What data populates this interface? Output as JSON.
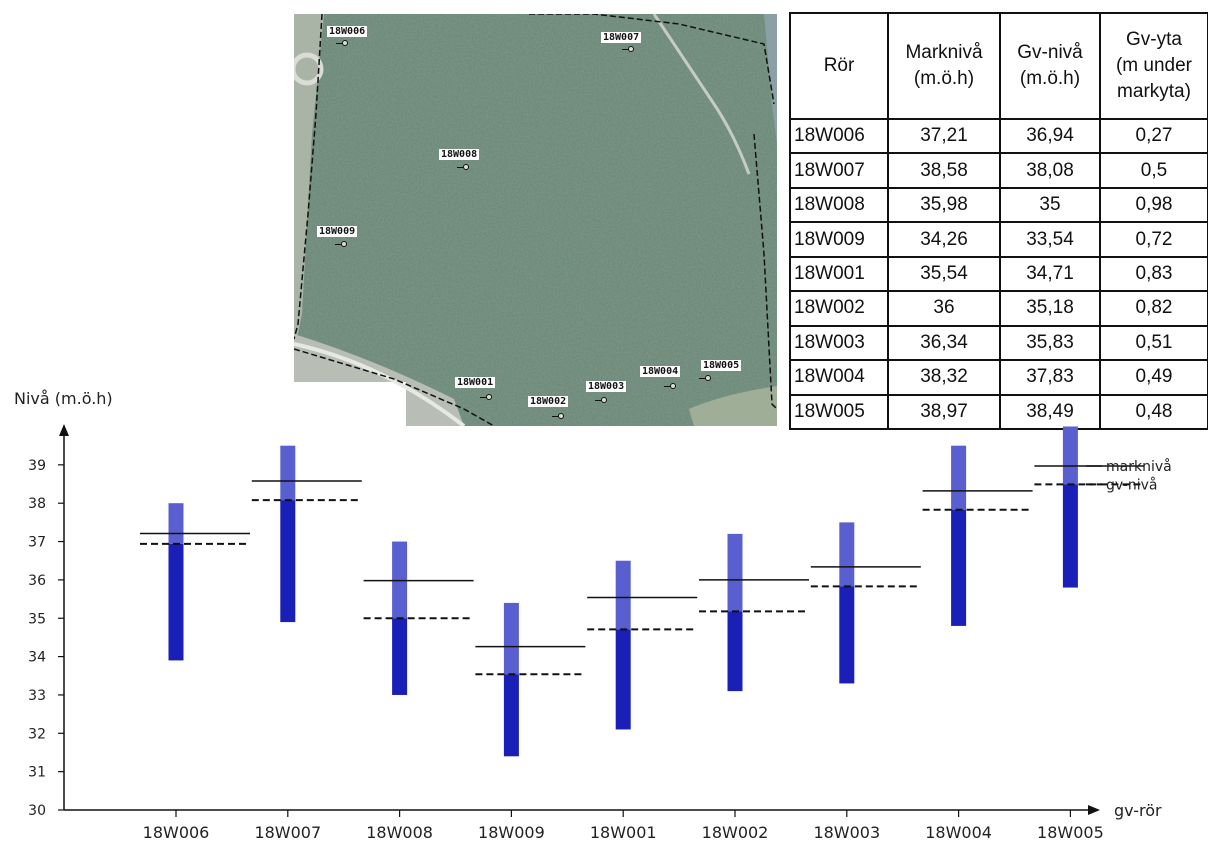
{
  "map": {
    "labels": [
      {
        "id": "18W006"
      },
      {
        "id": "18W007"
      },
      {
        "id": "18W008"
      },
      {
        "id": "18W009"
      },
      {
        "id": "18W001"
      },
      {
        "id": "18W002"
      },
      {
        "id": "18W003"
      },
      {
        "id": "18W004"
      },
      {
        "id": "18W005"
      }
    ]
  },
  "table": {
    "headers": [
      "Rör",
      "Marknivå\n(m.ö.h)",
      "Gv-nivå\n(m.ö.h)",
      "Gv-yta\n(m under\nmarkyta)"
    ],
    "rows": [
      [
        "18W006",
        "37,21",
        "36,94",
        "0,27"
      ],
      [
        "18W007",
        "38,58",
        "38,08",
        "0,5"
      ],
      [
        "18W008",
        "35,98",
        "35",
        "0,98"
      ],
      [
        "18W009",
        "34,26",
        "33,54",
        "0,72"
      ],
      [
        "18W001",
        "35,54",
        "34,71",
        "0,83"
      ],
      [
        "18W002",
        "36",
        "35,18",
        "0,82"
      ],
      [
        "18W003",
        "36,34",
        "35,83",
        "0,51"
      ],
      [
        "18W004",
        "38,32",
        "37,83",
        "0,49"
      ],
      [
        "18W005",
        "38,97",
        "38,49",
        "0,48"
      ]
    ]
  },
  "chart_data": {
    "type": "bar",
    "ylabel": "Nivå (m.ö.h)",
    "xlabel": "gv-rör",
    "ylim": [
      30,
      40
    ],
    "yticks": [
      30,
      31,
      32,
      33,
      34,
      35,
      36,
      37,
      38,
      39
    ],
    "categories": [
      "18W006",
      "18W007",
      "18W008",
      "18W009",
      "18W001",
      "18W002",
      "18W003",
      "18W004",
      "18W005"
    ],
    "bars": [
      {
        "top": 38.0,
        "bottom": 33.9
      },
      {
        "top": 39.5,
        "bottom": 34.9
      },
      {
        "top": 37.0,
        "bottom": 33.0
      },
      {
        "top": 35.4,
        "bottom": 31.4
      },
      {
        "top": 36.5,
        "bottom": 32.1
      },
      {
        "top": 37.2,
        "bottom": 33.1
      },
      {
        "top": 37.5,
        "bottom": 33.3
      },
      {
        "top": 39.5,
        "bottom": 34.8
      },
      {
        "top": 40.0,
        "bottom": 35.8
      }
    ],
    "series": [
      {
        "name": "marknivå",
        "style": "solid",
        "values": [
          37.21,
          38.58,
          35.98,
          34.26,
          35.54,
          36,
          36.34,
          38.32,
          38.97
        ]
      },
      {
        "name": "gv-nivå",
        "style": "dashed",
        "values": [
          36.94,
          38.08,
          35,
          33.54,
          34.71,
          35.18,
          35.83,
          37.83,
          38.49
        ]
      }
    ],
    "colors": {
      "bar_light": "#5a5fd0",
      "bar_dark": "#1a1fb8",
      "line": "#111111"
    },
    "legend": "right"
  }
}
